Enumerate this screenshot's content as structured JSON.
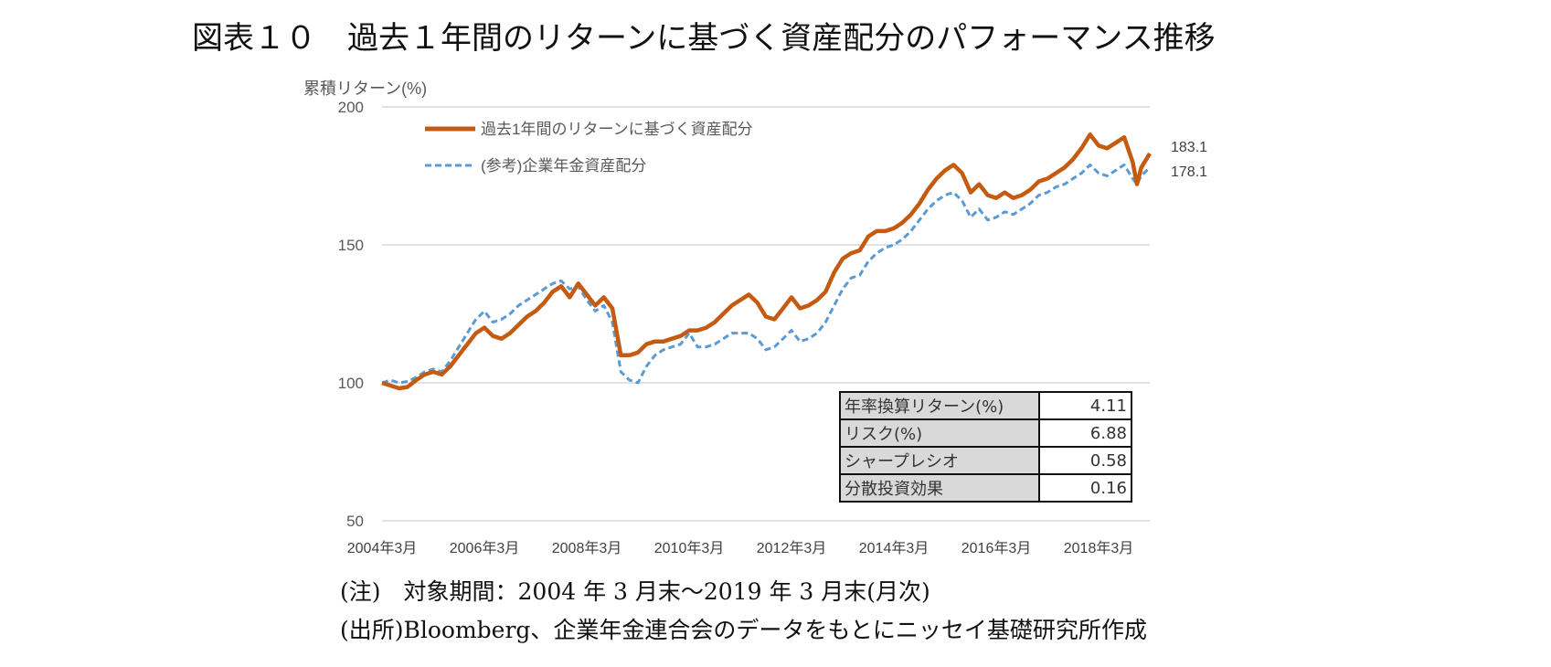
{
  "title": "図表１０　過去１年間のリターンに基づく資産配分のパフォーマンス推移",
  "notes": [
    "(注)　対象期間：2004 年 3 月末～2019 年 3 月末(月次)",
    "(出所)Bloomberg、企業年金連合会のデータをもとにニッセイ基礎研究所作成"
  ],
  "stats_table": [
    {
      "label": "年率換算リターン(%)",
      "value": "4.11"
    },
    {
      "label": "リスク(%)",
      "value": "6.88"
    },
    {
      "label": "シャープレシオ",
      "value": "0.58"
    },
    {
      "label": "分散投資効果",
      "value": "0.16"
    }
  ],
  "chart_data": {
    "type": "line",
    "ylabel": "累積リターン(%)",
    "xlabel": "",
    "ylim": [
      50,
      200
    ],
    "yticks": [
      50,
      100,
      150,
      200
    ],
    "xlim": [
      "2004-03",
      "2019-03"
    ],
    "xticks": [
      "2004年3月",
      "2006年3月",
      "2008年3月",
      "2010年3月",
      "2012年3月",
      "2014年3月",
      "2016年3月",
      "2018年3月"
    ],
    "grid": true,
    "legend_position": "top-left",
    "end_labels": [
      "183.1",
      "178.1"
    ],
    "series": [
      {
        "name": "過去1年間のリターンに基づく資産配分",
        "color": "#C55A11",
        "style": "solid",
        "points": [
          [
            "2004-03",
            100
          ],
          [
            "2004-05",
            99
          ],
          [
            "2004-07",
            98
          ],
          [
            "2004-09",
            98.5
          ],
          [
            "2004-11",
            101
          ],
          [
            "2005-01",
            103
          ],
          [
            "2005-03",
            104
          ],
          [
            "2005-05",
            103
          ],
          [
            "2005-07",
            106
          ],
          [
            "2005-09",
            110
          ],
          [
            "2005-11",
            114
          ],
          [
            "2006-01",
            118
          ],
          [
            "2006-03",
            120
          ],
          [
            "2006-05",
            117
          ],
          [
            "2006-07",
            116
          ],
          [
            "2006-09",
            118
          ],
          [
            "2006-11",
            121
          ],
          [
            "2007-01",
            124
          ],
          [
            "2007-03",
            126
          ],
          [
            "2007-05",
            129
          ],
          [
            "2007-07",
            133
          ],
          [
            "2007-09",
            135
          ],
          [
            "2007-11",
            131
          ],
          [
            "2008-01",
            136
          ],
          [
            "2008-03",
            132
          ],
          [
            "2008-05",
            128
          ],
          [
            "2008-07",
            131
          ],
          [
            "2008-09",
            127
          ],
          [
            "2008-11",
            110
          ],
          [
            "2009-01",
            110
          ],
          [
            "2009-03",
            111
          ],
          [
            "2009-05",
            114
          ],
          [
            "2009-07",
            115
          ],
          [
            "2009-09",
            115
          ],
          [
            "2009-11",
            116
          ],
          [
            "2010-01",
            117
          ],
          [
            "2010-03",
            119
          ],
          [
            "2010-05",
            119
          ],
          [
            "2010-07",
            120
          ],
          [
            "2010-09",
            122
          ],
          [
            "2010-11",
            125
          ],
          [
            "2011-01",
            128
          ],
          [
            "2011-03",
            130
          ],
          [
            "2011-05",
            132
          ],
          [
            "2011-07",
            129
          ],
          [
            "2011-09",
            124
          ],
          [
            "2011-11",
            123
          ],
          [
            "2012-01",
            127
          ],
          [
            "2012-03",
            131
          ],
          [
            "2012-05",
            127
          ],
          [
            "2012-07",
            128
          ],
          [
            "2012-09",
            130
          ],
          [
            "2012-11",
            133
          ],
          [
            "2013-01",
            140
          ],
          [
            "2013-03",
            145
          ],
          [
            "2013-05",
            147
          ],
          [
            "2013-07",
            148
          ],
          [
            "2013-09",
            153
          ],
          [
            "2013-11",
            155
          ],
          [
            "2014-01",
            155
          ],
          [
            "2014-03",
            156
          ],
          [
            "2014-05",
            158
          ],
          [
            "2014-07",
            161
          ],
          [
            "2014-09",
            165
          ],
          [
            "2014-11",
            170
          ],
          [
            "2015-01",
            174
          ],
          [
            "2015-03",
            177
          ],
          [
            "2015-05",
            179
          ],
          [
            "2015-07",
            176
          ],
          [
            "2015-09",
            169
          ],
          [
            "2015-11",
            172
          ],
          [
            "2016-01",
            168
          ],
          [
            "2016-03",
            167
          ],
          [
            "2016-05",
            169
          ],
          [
            "2016-07",
            167
          ],
          [
            "2016-09",
            168
          ],
          [
            "2016-11",
            170
          ],
          [
            "2017-01",
            173
          ],
          [
            "2017-03",
            174
          ],
          [
            "2017-05",
            176
          ],
          [
            "2017-07",
            178
          ],
          [
            "2017-09",
            181
          ],
          [
            "2017-11",
            185
          ],
          [
            "2018-01",
            190
          ],
          [
            "2018-03",
            186
          ],
          [
            "2018-05",
            185
          ],
          [
            "2018-07",
            187
          ],
          [
            "2018-09",
            189
          ],
          [
            "2018-11",
            180
          ],
          [
            "2018-12",
            172
          ],
          [
            "2019-01",
            178
          ],
          [
            "2019-03",
            183.1
          ]
        ]
      },
      {
        "name": "(参考)企業年金資産配分",
        "color": "#5B9BD5",
        "style": "dashed",
        "points": [
          [
            "2004-03",
            100
          ],
          [
            "2004-05",
            101
          ],
          [
            "2004-07",
            100
          ],
          [
            "2004-09",
            100.5
          ],
          [
            "2004-11",
            102
          ],
          [
            "2005-01",
            104
          ],
          [
            "2005-03",
            105
          ],
          [
            "2005-05",
            104
          ],
          [
            "2005-07",
            108
          ],
          [
            "2005-09",
            113
          ],
          [
            "2005-11",
            118
          ],
          [
            "2006-01",
            123
          ],
          [
            "2006-03",
            126
          ],
          [
            "2006-05",
            122
          ],
          [
            "2006-07",
            123
          ],
          [
            "2006-09",
            125
          ],
          [
            "2006-11",
            128
          ],
          [
            "2007-01",
            130
          ],
          [
            "2007-03",
            132
          ],
          [
            "2007-05",
            134
          ],
          [
            "2007-07",
            136
          ],
          [
            "2007-09",
            137
          ],
          [
            "2007-11",
            134
          ],
          [
            "2008-01",
            135
          ],
          [
            "2008-03",
            130
          ],
          [
            "2008-05",
            126
          ],
          [
            "2008-07",
            128
          ],
          [
            "2008-09",
            122
          ],
          [
            "2008-11",
            104
          ],
          [
            "2009-01",
            101
          ],
          [
            "2009-03",
            100
          ],
          [
            "2009-05",
            106
          ],
          [
            "2009-07",
            110
          ],
          [
            "2009-09",
            112
          ],
          [
            "2009-11",
            113
          ],
          [
            "2010-01",
            114
          ],
          [
            "2010-03",
            118
          ],
          [
            "2010-05",
            113
          ],
          [
            "2010-07",
            113
          ],
          [
            "2010-09",
            114
          ],
          [
            "2010-11",
            116
          ],
          [
            "2011-01",
            118
          ],
          [
            "2011-03",
            118
          ],
          [
            "2011-05",
            118
          ],
          [
            "2011-07",
            116
          ],
          [
            "2011-09",
            112
          ],
          [
            "2011-11",
            113
          ],
          [
            "2012-01",
            116
          ],
          [
            "2012-03",
            119
          ],
          [
            "2012-05",
            115
          ],
          [
            "2012-07",
            116
          ],
          [
            "2012-09",
            118
          ],
          [
            "2012-11",
            122
          ],
          [
            "2013-01",
            128
          ],
          [
            "2013-03",
            134
          ],
          [
            "2013-05",
            138
          ],
          [
            "2013-07",
            139
          ],
          [
            "2013-09",
            144
          ],
          [
            "2013-11",
            147
          ],
          [
            "2014-01",
            149
          ],
          [
            "2014-03",
            150
          ],
          [
            "2014-05",
            152
          ],
          [
            "2014-07",
            155
          ],
          [
            "2014-09",
            159
          ],
          [
            "2014-11",
            163
          ],
          [
            "2015-01",
            166
          ],
          [
            "2015-03",
            168
          ],
          [
            "2015-05",
            169
          ],
          [
            "2015-07",
            166
          ],
          [
            "2015-09",
            160
          ],
          [
            "2015-11",
            163
          ],
          [
            "2016-01",
            159
          ],
          [
            "2016-03",
            160
          ],
          [
            "2016-05",
            162
          ],
          [
            "2016-07",
            161
          ],
          [
            "2016-09",
            163
          ],
          [
            "2016-11",
            165
          ],
          [
            "2017-01",
            168
          ],
          [
            "2017-03",
            169
          ],
          [
            "2017-05",
            171
          ],
          [
            "2017-07",
            172
          ],
          [
            "2017-09",
            174
          ],
          [
            "2017-11",
            176
          ],
          [
            "2018-01",
            179
          ],
          [
            "2018-03",
            176
          ],
          [
            "2018-05",
            175
          ],
          [
            "2018-07",
            177
          ],
          [
            "2018-09",
            179
          ],
          [
            "2018-11",
            174
          ],
          [
            "2018-12",
            172
          ],
          [
            "2019-01",
            175
          ],
          [
            "2019-03",
            178.1
          ]
        ]
      }
    ]
  }
}
